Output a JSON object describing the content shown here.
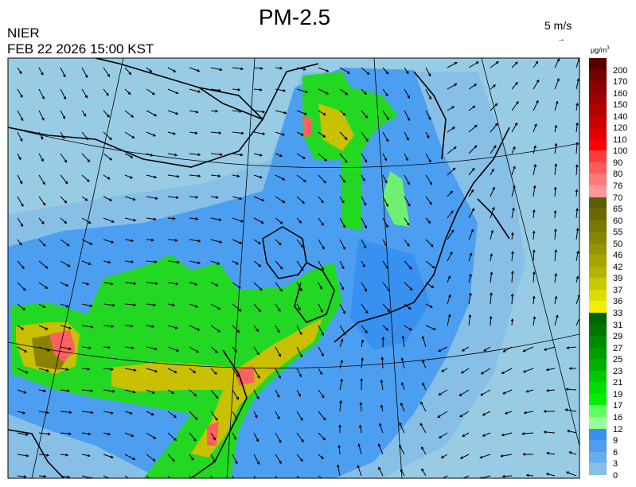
{
  "title": "PM-2.5",
  "agency": "NIER",
  "timestamp": "FEB 22 2026 15:00 KST",
  "wind_reference": {
    "label": "5 m/s",
    "arrow": "→"
  },
  "legend": {
    "unit": "µg/m",
    "unit_exp": "3",
    "labels": [
      "200",
      "170",
      "160",
      "150",
      "140",
      "120",
      "110",
      "100",
      "90",
      "80",
      "76",
      "70",
      "65",
      "60",
      "55",
      "50",
      "46",
      "42",
      "39",
      "37",
      "36",
      "33",
      "31",
      "29",
      "27",
      "25",
      "23",
      "21",
      "19",
      "17",
      "16",
      "12",
      "9",
      "6",
      "3",
      "0"
    ],
    "colors": [
      "#5a0000",
      "#780000",
      "#8c0000",
      "#a00000",
      "#b40000",
      "#c80000",
      "#e00000",
      "#ff0000",
      "#ff3c3c",
      "#ff5a5a",
      "#ff7878",
      "#ff9696",
      "#5c5c00",
      "#6a6a00",
      "#787800",
      "#868600",
      "#949400",
      "#a4a400",
      "#b4b400",
      "#c8c800",
      "#dcdc00",
      "#f0f000",
      "#006400",
      "#007800",
      "#008a00",
      "#009c00",
      "#00b000",
      "#00c800",
      "#00dc00",
      "#00f000",
      "#60ff60",
      "#96ff96",
      "#3890f0",
      "#4c9ff0",
      "#64aeee",
      "#88bfe6",
      "#98cce4"
    ]
  },
  "map_colors": {
    "background": "#98cce4",
    "low": "#88bfe6",
    "blue": "#4c9ff0",
    "green": "#22d822",
    "light_green": "#70f070",
    "yellow": "#c8c000",
    "olive": "#8a8200",
    "red": "#ff6060",
    "coast": "#000000",
    "grid": "#000000"
  }
}
